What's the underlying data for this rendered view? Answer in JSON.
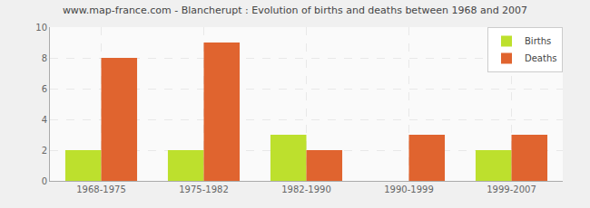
{
  "chart_data": {
    "type": "bar",
    "title": "www.map-france.com - Blancherupt : Evolution of births and deaths between 1968 and 2007",
    "categories": [
      "1968-1975",
      "1975-1982",
      "1982-1990",
      "1990-1999",
      "1999-2007"
    ],
    "series": [
      {
        "name": "Births",
        "color": "#bde02d",
        "values": [
          2,
          2,
          3,
          0,
          2
        ]
      },
      {
        "name": "Deaths",
        "color": "#e0642f",
        "values": [
          8,
          9,
          2,
          3,
          3
        ]
      }
    ],
    "ylim": [
      0,
      10
    ],
    "yticks": [
      0,
      2,
      4,
      6,
      8,
      10
    ],
    "grid": true,
    "legend": "top right"
  }
}
